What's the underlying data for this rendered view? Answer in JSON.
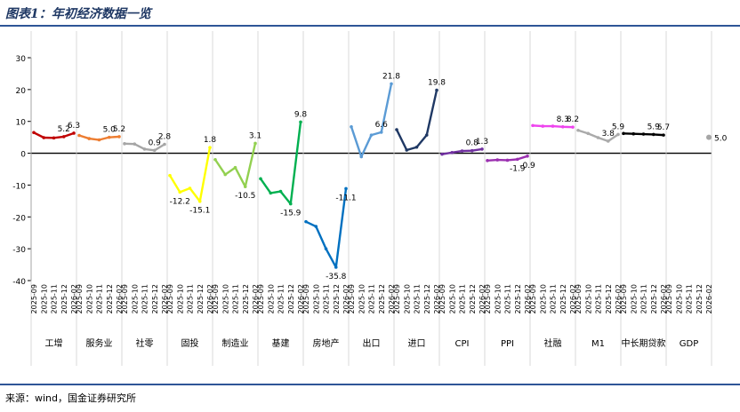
{
  "header": {
    "title": "图表1：年初经济数据一览"
  },
  "footer": {
    "source": "来源：wind，国金证券研究所"
  },
  "chart_data": {
    "type": "line",
    "ylim": [
      -40,
      30
    ],
    "yticks": [
      -40,
      -30,
      -20,
      -10,
      0,
      10,
      20,
      30
    ],
    "grid": false,
    "months": [
      "2025-09",
      "2025-10",
      "2025-11",
      "2025-12",
      "2026-02"
    ],
    "series": [
      {
        "name": "工增",
        "color": "#c00000",
        "values": [
          6.5,
          4.9,
          4.8,
          5.2,
          6.3
        ],
        "labels": [
          "",
          "",
          "",
          "5.2",
          "6.3"
        ]
      },
      {
        "name": "服务业",
        "color": "#ed7d31",
        "values": [
          5.6,
          4.6,
          4.2,
          5.0,
          5.2
        ],
        "labels": [
          "",
          "",
          "",
          "5.0",
          "5.2"
        ]
      },
      {
        "name": "社零",
        "color": "#a6a6a6",
        "values": [
          3.0,
          2.9,
          1.3,
          0.9,
          2.8
        ],
        "labels": [
          "",
          "",
          "",
          "0.9",
          "2.8"
        ]
      },
      {
        "name": "固投",
        "color": "#ffff00",
        "values": [
          -7.0,
          -12.2,
          -11.0,
          -15.1,
          1.8
        ],
        "labels": [
          "",
          "-12.2",
          "",
          "-15.1",
          "1.8"
        ]
      },
      {
        "name": "制造业",
        "color": "#92d050",
        "values": [
          -2.0,
          -6.7,
          -4.5,
          -10.5,
          3.1
        ],
        "labels": [
          "",
          "",
          "",
          "-10.5",
          "3.1"
        ]
      },
      {
        "name": "基建",
        "color": "#00b050",
        "values": [
          -8.0,
          -12.5,
          -12.0,
          -15.9,
          9.8
        ],
        "labels": [
          "",
          "",
          "",
          "-15.9",
          "9.8"
        ]
      },
      {
        "name": "房地产",
        "color": "#0070c0",
        "values": [
          -21.5,
          -23.0,
          -30.0,
          -35.8,
          -11.1
        ],
        "labels": [
          "",
          "",
          "",
          "-35.8",
          "-11.1"
        ]
      },
      {
        "name": "出口",
        "color": "#5b9bd5",
        "values": [
          8.3,
          -1.1,
          5.7,
          6.6,
          21.8
        ],
        "labels": [
          "",
          "",
          "",
          "6.6",
          "21.8"
        ]
      },
      {
        "name": "进口",
        "color": "#1f3864",
        "values": [
          7.4,
          1.0,
          1.9,
          5.7,
          19.8
        ],
        "labels": [
          "",
          "",
          "",
          "",
          "19.8"
        ]
      },
      {
        "name": "CPI",
        "color": "#7030a0",
        "values": [
          -0.3,
          0.2,
          0.7,
          0.8,
          1.3
        ],
        "labels": [
          "",
          "",
          "",
          "0.8",
          "1.3"
        ]
      },
      {
        "name": "PPI",
        "color": "#9b30b0",
        "values": [
          -2.3,
          -2.1,
          -2.2,
          -1.9,
          -0.9
        ],
        "labels": [
          "",
          "",
          "",
          "-1.9",
          "-0.9"
        ]
      },
      {
        "name": "社融",
        "color": "#ee44ee",
        "values": [
          8.7,
          8.5,
          8.5,
          8.3,
          8.2
        ],
        "labels": [
          "",
          "",
          "",
          "8.3",
          "8.2"
        ]
      },
      {
        "name": "M1",
        "color": "#aaaaaa",
        "values": [
          7.2,
          6.2,
          4.9,
          3.8,
          5.9
        ],
        "labels": [
          "",
          "",
          "",
          "3.8",
          "5.9"
        ]
      },
      {
        "name": "中长期贷款",
        "color": "#000000",
        "values": [
          6.2,
          6.1,
          6.0,
          5.9,
          5.7
        ],
        "labels": [
          "",
          "",
          "",
          "5.9",
          "5.7"
        ]
      },
      {
        "name": "GDP",
        "color": "#a6a6a6",
        "points": [
          {
            "x": "2026-02",
            "y": 5.0
          }
        ],
        "labels": [
          "5.0"
        ]
      }
    ]
  }
}
